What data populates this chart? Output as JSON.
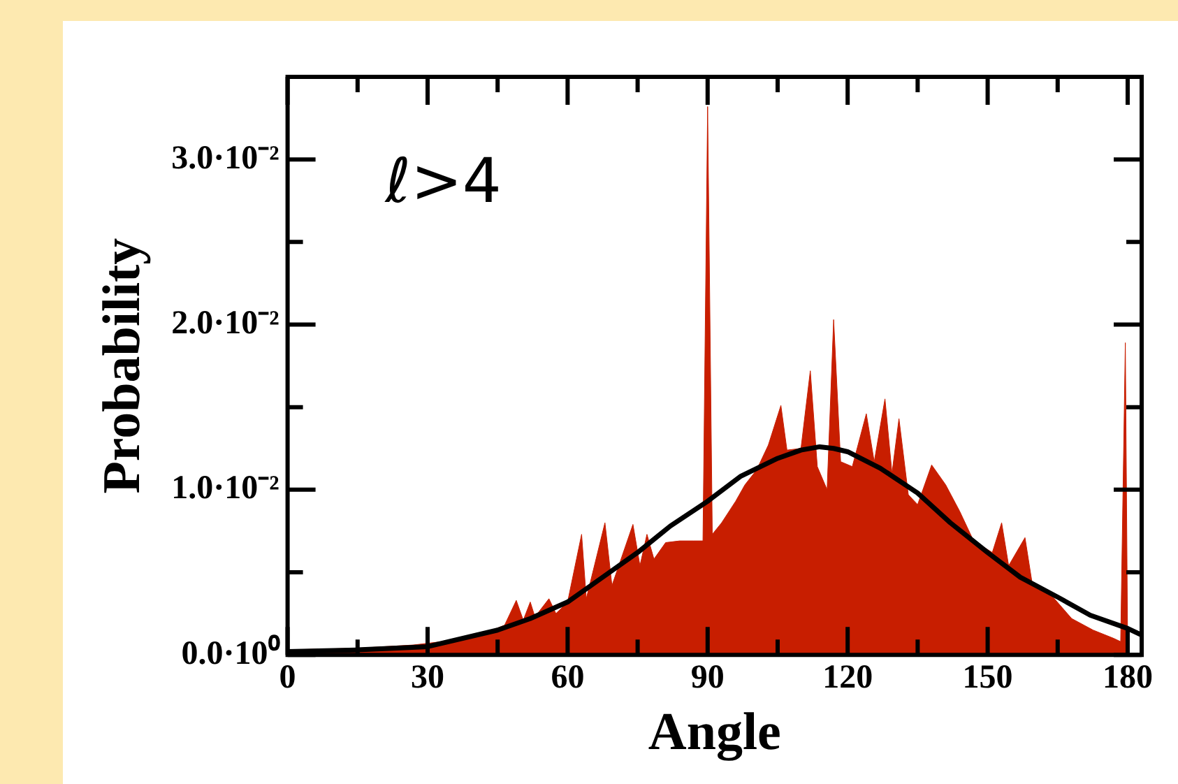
{
  "chart_data": {
    "type": "area",
    "xlabel": "Angle",
    "ylabel": "Probability",
    "annotations": [
      "ℓ>4"
    ],
    "xlim": [
      0,
      183
    ],
    "ylim": [
      0,
      0.035
    ],
    "xticks": [
      0,
      {
        "value": 15,
        "label": null
      },
      30,
      {
        "value": 45,
        "label": null
      },
      60,
      {
        "value": 75,
        "label": null
      },
      90,
      {
        "value": 105,
        "label": null
      },
      120,
      {
        "value": 135,
        "label": null
      },
      150,
      {
        "value": 165,
        "label": null
      },
      180
    ],
    "yticks": [
      {
        "value": 0,
        "label": "0.0·10⁰"
      },
      {
        "value": 0.005,
        "label": null
      },
      {
        "value": 0.01,
        "label": "1.0·10⁻²"
      },
      {
        "value": 0.015,
        "label": null
      },
      {
        "value": 0.02,
        "label": "2.0·10⁻²"
      },
      {
        "value": 0.025,
        "label": null
      },
      {
        "value": 0.03,
        "label": "3.0·10⁻²"
      }
    ],
    "grid": false,
    "legend": false,
    "marker": "none",
    "series": [
      {
        "type": "area",
        "color": "#c81e00",
        "x": [
          0,
          15,
          27,
          33,
          38,
          43,
          46.5,
          49,
          50.5,
          52,
          53,
          56,
          57.5,
          60,
          63,
          64,
          68,
          69.5,
          74,
          75.5,
          77,
          78.5,
          81,
          84,
          87,
          89,
          90,
          91,
          93,
          96,
          98,
          100.5,
          103,
          105.7,
          107,
          110,
          112,
          113.5,
          115.6,
          117,
          118.5,
          121,
          124,
          125.7,
          128,
          129.5,
          131,
          133,
          135,
          138,
          139.5,
          141,
          144,
          147,
          151,
          153,
          154.5,
          158,
          159.5,
          164,
          168,
          172.6,
          177,
          178.5,
          179.5,
          180
        ],
        "values": [
          0.0003,
          0.0004,
          0.0006,
          0.0008,
          0.0011,
          0.0014,
          0.0018,
          0.0033,
          0.0021,
          0.0032,
          0.0023,
          0.0034,
          0.0025,
          0.0032,
          0.0073,
          0.0034,
          0.008,
          0.0042,
          0.0079,
          0.0054,
          0.0073,
          0.0058,
          0.0068,
          0.0069,
          0.0069,
          0.0069,
          0.0332,
          0.0073,
          0.008,
          0.0093,
          0.0103,
          0.0112,
          0.0127,
          0.0151,
          0.0124,
          0.0125,
          0.0172,
          0.0114,
          0.01,
          0.0203,
          0.0117,
          0.0114,
          0.0146,
          0.0117,
          0.0155,
          0.011,
          0.0143,
          0.0097,
          0.0091,
          0.0115,
          0.0109,
          0.0103,
          0.0087,
          0.0069,
          0.0062,
          0.008,
          0.0054,
          0.0071,
          0.0044,
          0.0035,
          0.0022,
          0.0015,
          0.001,
          0.0008,
          0.0189,
          0.0003
        ]
      },
      {
        "type": "line",
        "color": "#000000",
        "x": [
          0,
          15,
          30,
          45,
          52,
          60,
          67,
          75,
          82,
          90,
          97,
          105,
          110,
          114,
          117,
          120,
          127,
          135,
          142,
          150,
          157,
          165,
          172,
          180,
          183
        ],
        "values": [
          0.0002,
          0.0003,
          0.0005,
          0.0015,
          0.0022,
          0.0032,
          0.0046,
          0.0062,
          0.0078,
          0.0093,
          0.0108,
          0.0119,
          0.0124,
          0.0126,
          0.0125,
          0.0123,
          0.0113,
          0.0098,
          0.008,
          0.0062,
          0.0047,
          0.0035,
          0.0024,
          0.0016,
          0.0012
        ]
      }
    ]
  }
}
